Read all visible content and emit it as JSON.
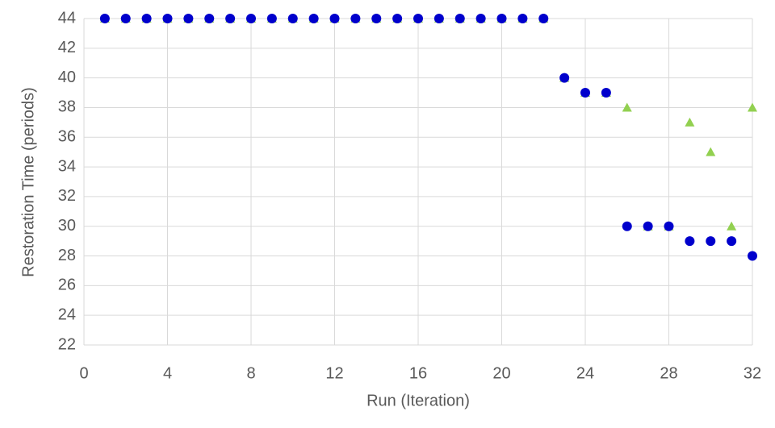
{
  "chart_data": {
    "type": "scatter",
    "x_label": "Run (Iteration)",
    "y_label": "Restoration Time (periods)",
    "xlim": [
      0,
      32
    ],
    "xticks": [
      0,
      4,
      8,
      12,
      16,
      20,
      24,
      28,
      32
    ],
    "ylim": [
      22,
      44
    ],
    "yticks": [
      22,
      24,
      26,
      28,
      30,
      32,
      34,
      36,
      38,
      40,
      42,
      44
    ],
    "grid": true,
    "series": [
      {
        "color": "#92d050",
        "marker": "triangle",
        "x": [
          1,
          2,
          3,
          4,
          5,
          6,
          7,
          8,
          9,
          10,
          11,
          12,
          13,
          14,
          15,
          16,
          17,
          18,
          19,
          20,
          21,
          22,
          23,
          24,
          25,
          26,
          27,
          28,
          29,
          30,
          31,
          32
        ],
        "values": [
          44,
          44,
          44,
          44,
          44,
          44,
          44,
          44,
          44,
          44,
          44,
          44,
          44,
          44,
          44,
          44,
          44,
          44,
          44,
          44,
          44,
          44,
          40,
          39,
          39,
          38,
          30,
          30,
          37,
          35,
          30,
          38
        ]
      },
      {
        "color": "#0000cc",
        "marker": "circle",
        "x": [
          1,
          2,
          3,
          4,
          5,
          6,
          7,
          8,
          9,
          10,
          11,
          12,
          13,
          14,
          15,
          16,
          17,
          18,
          19,
          20,
          21,
          22,
          23,
          24,
          25,
          26,
          27,
          28,
          29,
          30,
          31,
          32
        ],
        "values": [
          44,
          44,
          44,
          44,
          44,
          44,
          44,
          44,
          44,
          44,
          44,
          44,
          44,
          44,
          44,
          44,
          44,
          44,
          44,
          44,
          44,
          44,
          40,
          39,
          39,
          30,
          30,
          30,
          29,
          29,
          29,
          28
        ]
      }
    ]
  }
}
